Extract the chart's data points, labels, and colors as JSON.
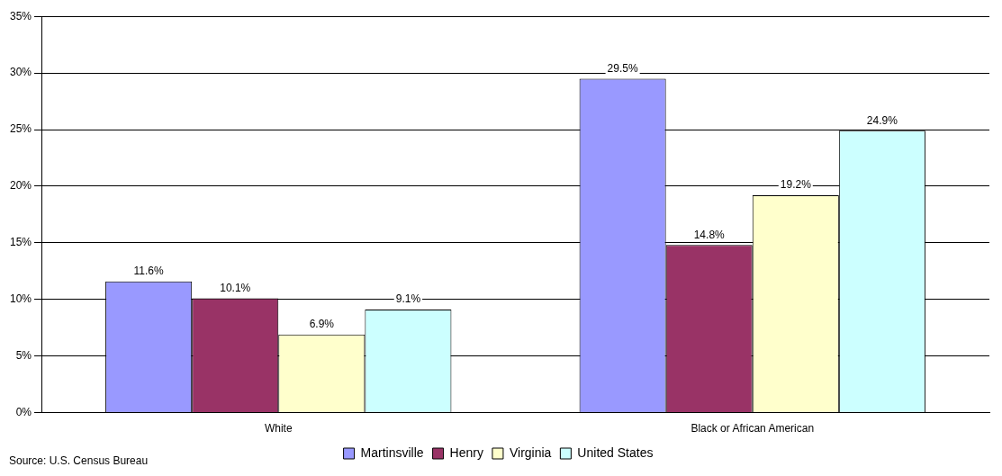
{
  "chart_data": {
    "type": "bar",
    "categories": [
      "White",
      "Black or African American"
    ],
    "series": [
      {
        "name": "Martinsville",
        "color": "#9999ff",
        "values": [
          11.6,
          29.5
        ],
        "value_labels": [
          "11.6%",
          "29.5%"
        ]
      },
      {
        "name": "Henry",
        "color": "#993366",
        "values": [
          10.1,
          14.8
        ],
        "value_labels": [
          "10.1%",
          "14.8%"
        ]
      },
      {
        "name": "Virginia",
        "color": "#ffffcc",
        "values": [
          6.9,
          19.2
        ],
        "value_labels": [
          "6.9%",
          "19.2%"
        ]
      },
      {
        "name": "United States",
        "color": "#ccffff",
        "values": [
          9.1,
          24.9
        ],
        "value_labels": [
          "9.1%",
          "24.9%"
        ]
      }
    ],
    "ylim": [
      0,
      35
    ],
    "yticks": [
      {
        "value": 0,
        "label": "0%"
      },
      {
        "value": 5,
        "label": "5%"
      },
      {
        "value": 10,
        "label": "10%"
      },
      {
        "value": 15,
        "label": "15%"
      },
      {
        "value": 20,
        "label": "20%"
      },
      {
        "value": 25,
        "label": "25%"
      },
      {
        "value": 30,
        "label": "30%"
      },
      {
        "value": 35,
        "label": "35%"
      }
    ],
    "grid": "y",
    "legend": "bottom",
    "annotations": [
      "Source: U.S. Census Bureau"
    ]
  }
}
